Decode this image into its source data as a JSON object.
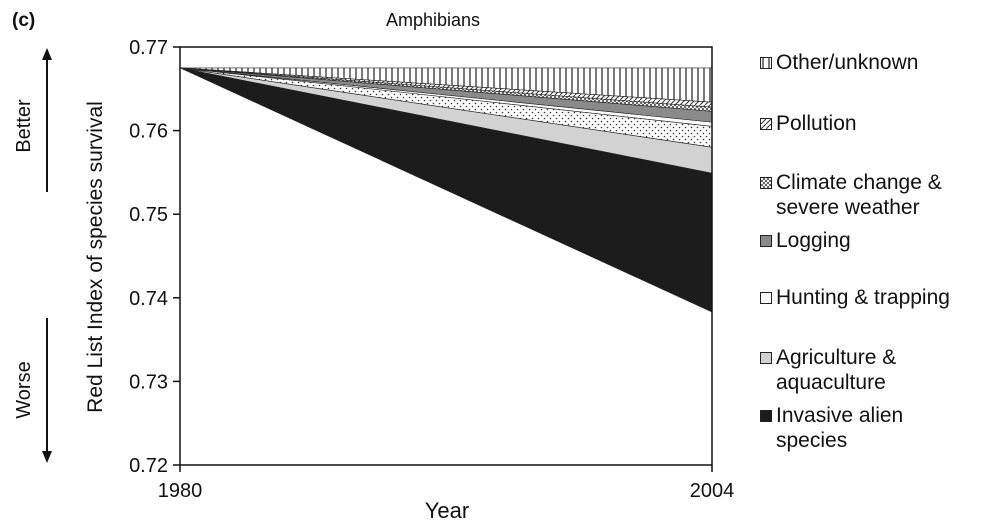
{
  "panel_label": "(c)",
  "better_label": "Better",
  "worse_label": "Worse",
  "chart_data": {
    "type": "area",
    "title": "Amphibians",
    "xlabel": "Year",
    "ylabel": "Red List Index of species survival",
    "x": [
      1980,
      2004
    ],
    "xticks": [
      "1980",
      "2004"
    ],
    "ylim": [
      0.72,
      0.77
    ],
    "yticks": [
      "0.77",
      "0.76",
      "0.75",
      "0.74",
      "0.73",
      "0.72"
    ],
    "grid": false,
    "start_value": 0.7675,
    "series": [
      {
        "name": "Other/unknown",
        "pattern": "vertical-lines",
        "y_end_top": 0.7675,
        "y_end_bottom": 0.7634
      },
      {
        "name": "Pollution",
        "pattern": "diagonal",
        "y_end_top": 0.7634,
        "y_end_bottom": 0.7628
      },
      {
        "name": "Climate change &\nsevere weather",
        "pattern": "cross-hatch",
        "y_end_top": 0.7628,
        "y_end_bottom": 0.7623
      },
      {
        "name": "Logging",
        "pattern": "medium-gray",
        "y_end_top": 0.7623,
        "y_end_bottom": 0.761
      },
      {
        "name": "Hunting & trapping",
        "pattern": "white",
        "y_end_top": 0.761,
        "y_end_bottom": 0.7605
      },
      {
        "name": "Agriculture &\naquaculture",
        "pattern": "dots",
        "y_end_top": 0.7605,
        "y_end_bottom": 0.758
      },
      {
        "name": "Agriculture &\naquaculture (light)",
        "pattern": "light-gray",
        "y_end_top": 0.758,
        "y_end_bottom": 0.7549
      },
      {
        "name": "Invasive alien\nspecies",
        "pattern": "black",
        "y_end_top": 0.7549,
        "y_end_bottom": 0.7383
      }
    ],
    "legend": [
      {
        "label": "Other/unknown",
        "pattern": "vertical-lines"
      },
      {
        "label": "Pollution",
        "pattern": "diagonal"
      },
      {
        "label": "Climate change &\nsevere weather",
        "pattern": "cross-hatch"
      },
      {
        "label": "Logging",
        "pattern": "medium-gray"
      },
      {
        "label": "Hunting & trapping",
        "pattern": "white"
      },
      {
        "label": "Agriculture &\naquaculture",
        "pattern": "light-gray"
      },
      {
        "label": "Invasive alien\nspecies",
        "pattern": "black"
      }
    ],
    "legend_position": "right",
    "colors": {
      "black": "#1c1c1c",
      "medium_gray": "#8a8a8a",
      "light_gray": "#d2d2d2",
      "axis": "#111111"
    }
  }
}
